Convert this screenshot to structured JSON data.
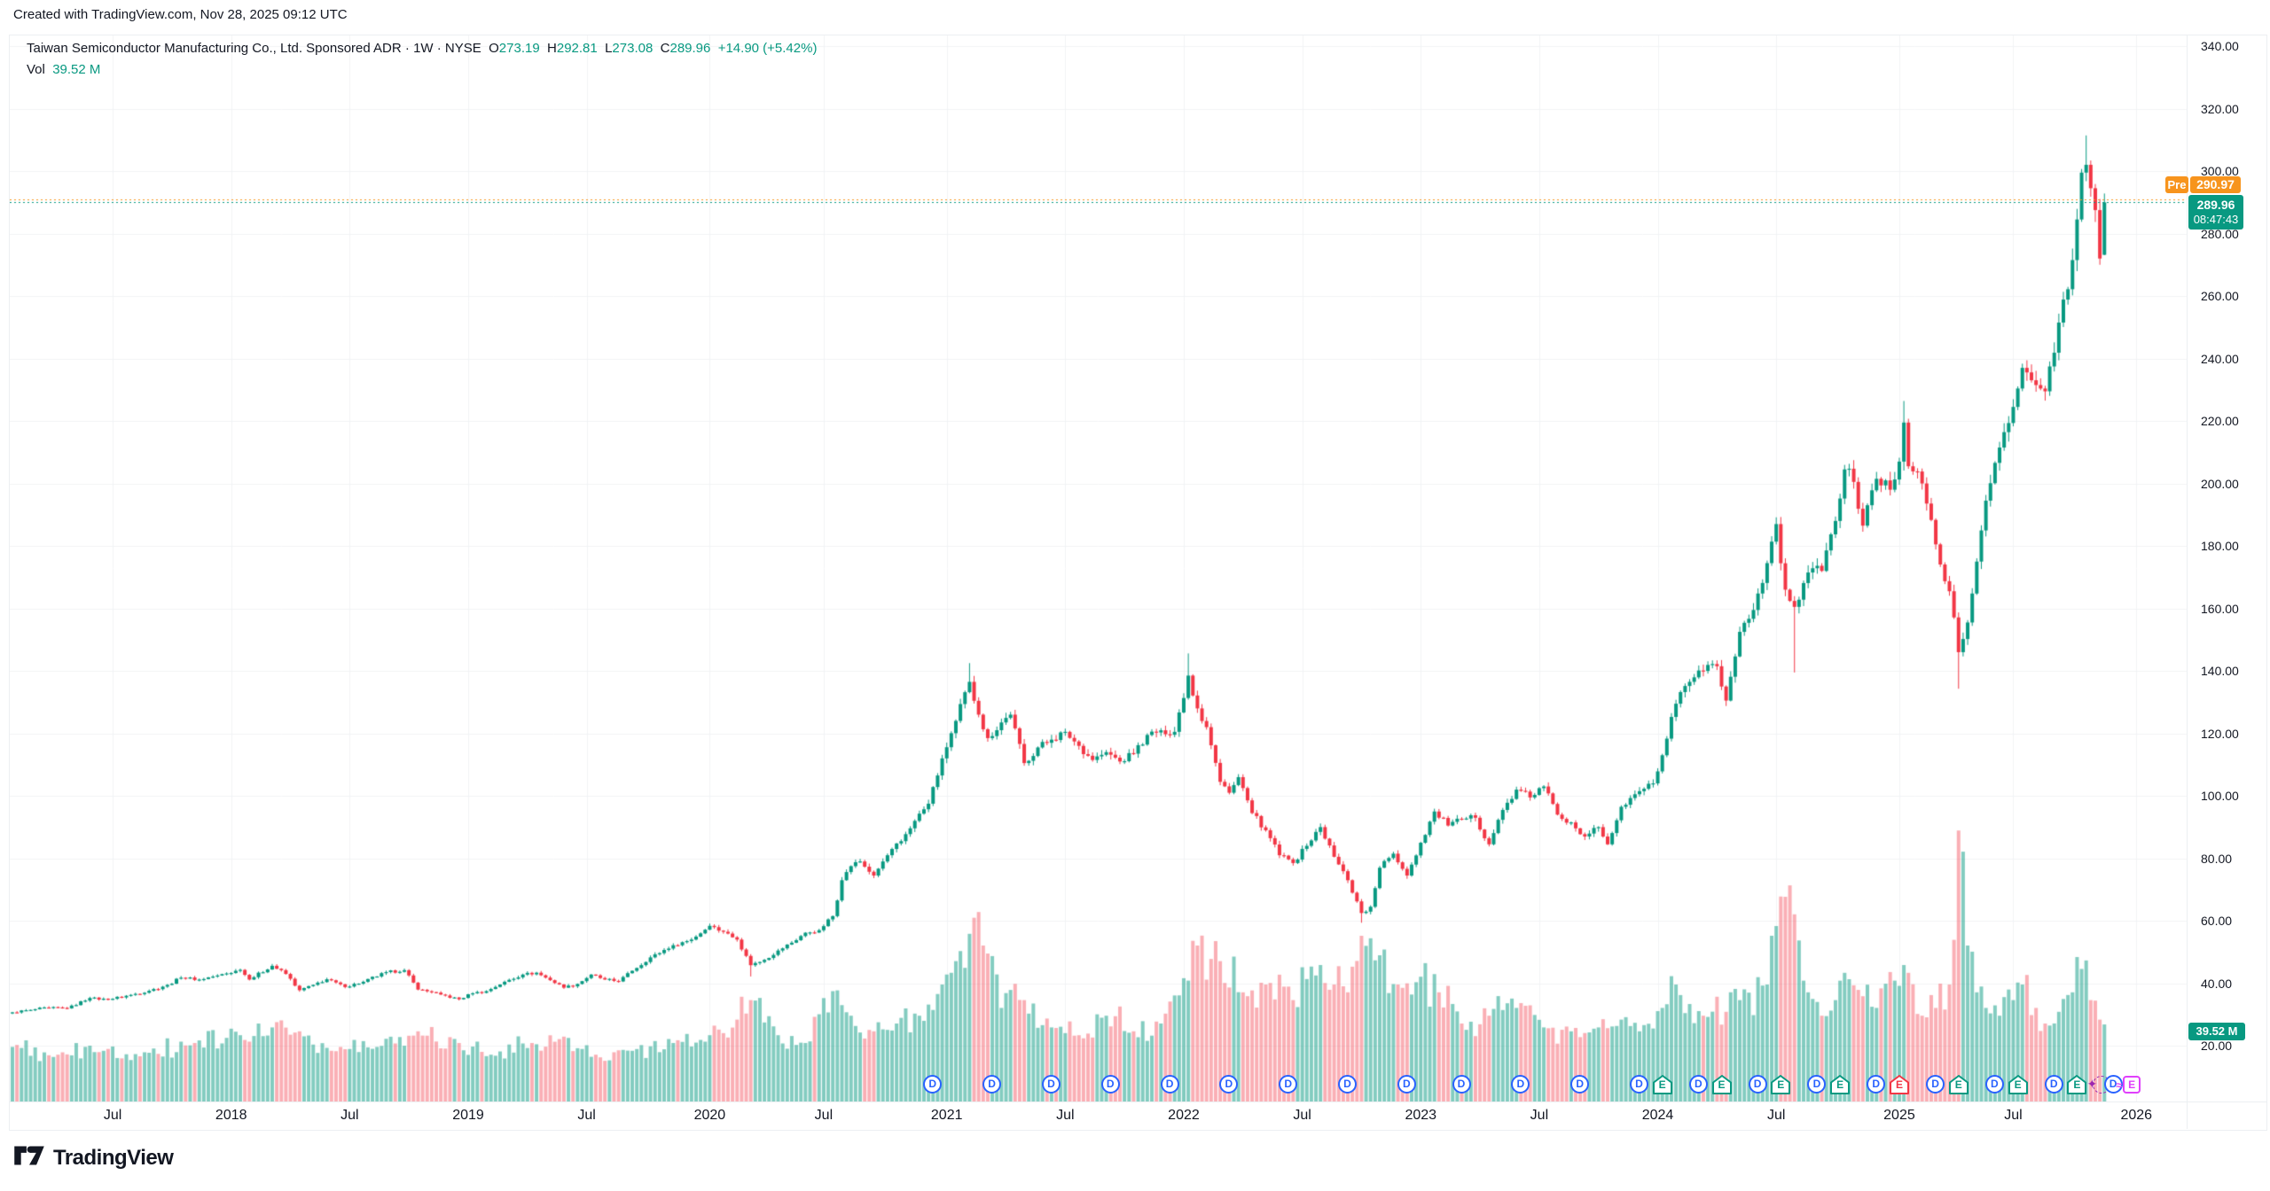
{
  "header": {
    "created_line": "Created with TradingView.com, Nov 28, 2025 09:12 UTC"
  },
  "legend": {
    "title": "Taiwan Semiconductor Manufacturing Co., Ltd. Sponsored ADR",
    "separator": "·",
    "timeframe": "1W",
    "exchange": "NYSE",
    "ohlc": [
      {
        "k": "O",
        "v": "273.19"
      },
      {
        "k": "H",
        "v": "292.81"
      },
      {
        "k": "L",
        "v": "273.08"
      },
      {
        "k": "C",
        "v": "289.96"
      }
    ],
    "change": "+14.90 (+5.42%)",
    "vol_label": "Vol",
    "vol_value": "39.52 M"
  },
  "price_axis": {
    "labels": [
      "340.00",
      "320.00",
      "300.00",
      "280.00",
      "260.00",
      "240.00",
      "220.00",
      "200.00",
      "180.00",
      "160.00",
      "140.00",
      "120.00",
      "100.00",
      "80.00",
      "60.00",
      "40.00",
      "20.00"
    ],
    "pre_badge": {
      "label": "Pre",
      "value": "290.97"
    },
    "last_badge": {
      "value": "289.96",
      "countdown": "08:47:43"
    },
    "volume_badge": "39.52 M"
  },
  "time_axis": {
    "labels": [
      {
        "text": "Jul",
        "week": 22
      },
      {
        "text": "2018",
        "week": 48
      },
      {
        "text": "Jul",
        "week": 74
      },
      {
        "text": "2019",
        "week": 100
      },
      {
        "text": "Jul",
        "week": 126
      },
      {
        "text": "2020",
        "week": 153
      },
      {
        "text": "Jul",
        "week": 178
      },
      {
        "text": "2021",
        "week": 205
      },
      {
        "text": "Jul",
        "week": 231
      },
      {
        "text": "2022",
        "week": 257
      },
      {
        "text": "Jul",
        "week": 283
      },
      {
        "text": "2023",
        "week": 309
      },
      {
        "text": "Jul",
        "week": 335
      },
      {
        "text": "2024",
        "week": 361
      },
      {
        "text": "Jul",
        "week": 387
      },
      {
        "text": "2025",
        "week": 414
      },
      {
        "text": "Jul",
        "week": 439
      },
      {
        "text": "2026",
        "week": 466
      }
    ]
  },
  "events": {
    "dividend_letter": "D",
    "earnings_letter": "E",
    "dividends_weeks": [
      202,
      215,
      228,
      241,
      254,
      267,
      280,
      293,
      306,
      318,
      331,
      344,
      357,
      370,
      383,
      396,
      409,
      422,
      435,
      448
    ],
    "dividend_upcoming_week": 461,
    "earnings": [
      {
        "week": 362,
        "result": "beat"
      },
      {
        "week": 375,
        "result": "beat"
      },
      {
        "week": 388,
        "result": "beat"
      },
      {
        "week": 401,
        "result": "beat"
      },
      {
        "week": 414,
        "result": "miss"
      },
      {
        "week": 427,
        "result": "beat"
      },
      {
        "week": 440,
        "result": "beat"
      },
      {
        "week": 453,
        "result": "beat"
      }
    ],
    "earnings_upcoming_week": 465
  },
  "colors": {
    "up": "#089981",
    "down": "#F23645",
    "volume_up": "rgba(8,153,129,0.5)",
    "volume_down": "rgba(242,54,69,0.4)",
    "pre_line": "#F7941D",
    "last_line": "#089981",
    "dividend": "#2962FF",
    "earnings_beat": "#089981",
    "earnings_miss": "#F23645",
    "earnings_upcoming": "#E040FB",
    "sparkle": "#9C27B0",
    "grid": "#F2F3F5",
    "text": "#131722"
  },
  "branding": {
    "logo_text": "TradingView"
  },
  "chart_data": {
    "type": "candlestick_with_volume",
    "symbol": "Taiwan Semiconductor Manufacturing Co., Ltd. Sponsored ADR (NYSE)",
    "timeframe": "1W",
    "week0_date": "2017-01-30",
    "weeks_total": 460,
    "y_axis": {
      "min_label": 20,
      "max_label": 340,
      "step": 20
    },
    "price_lines": {
      "premarket": 290.97,
      "last_close": 289.96
    },
    "last_candle": {
      "open": 273.19,
      "high": 292.81,
      "low": 273.08,
      "close": 289.96,
      "volume_m": 39.52
    },
    "noise_pct": 0.012,
    "close_anchors": [
      [
        0,
        30.7
      ],
      [
        4,
        31.5
      ],
      [
        8,
        32.2
      ],
      [
        12,
        32.0
      ],
      [
        17,
        35.3
      ],
      [
        21,
        34.8
      ],
      [
        26,
        36.3
      ],
      [
        30,
        37.6
      ],
      [
        34,
        39.5
      ],
      [
        37,
        41.8
      ],
      [
        41,
        41.2
      ],
      [
        45,
        42.5
      ],
      [
        50,
        44.3
      ],
      [
        52,
        41.2
      ],
      [
        57,
        45.6
      ],
      [
        60,
        43.0
      ],
      [
        63,
        37.8
      ],
      [
        66,
        39.5
      ],
      [
        69,
        41.3
      ],
      [
        73,
        38.8
      ],
      [
        77,
        40.5
      ],
      [
        82,
        43.6
      ],
      [
        86,
        44.2
      ],
      [
        89,
        38.0
      ],
      [
        92,
        37.2
      ],
      [
        94,
        36.4
      ],
      [
        98,
        34.9
      ],
      [
        101,
        36.8
      ],
      [
        104,
        37.5
      ],
      [
        108,
        40.5
      ],
      [
        112,
        42.8
      ],
      [
        115,
        43.4
      ],
      [
        118,
        41.0
      ],
      [
        121,
        38.6
      ],
      [
        124,
        39.8
      ],
      [
        127,
        42.8
      ],
      [
        130,
        41.2
      ],
      [
        133,
        40.6
      ],
      [
        136,
        44.0
      ],
      [
        140,
        48.3
      ],
      [
        145,
        52.2
      ],
      [
        149,
        54.0
      ],
      [
        153,
        58.4
      ],
      [
        156,
        56.5
      ],
      [
        159,
        54.0
      ],
      [
        162,
        45.8
      ],
      [
        165,
        47.5
      ],
      [
        168,
        50.5
      ],
      [
        171,
        53.0
      ],
      [
        174,
        56.2
      ],
      [
        177,
        57.0
      ],
      [
        180,
        61.5
      ],
      [
        182,
        73.0
      ],
      [
        184,
        77.5
      ],
      [
        186,
        79.0
      ],
      [
        189,
        74.5
      ],
      [
        192,
        81.0
      ],
      [
        195,
        85.5
      ],
      [
        198,
        92.0
      ],
      [
        201,
        97.5
      ],
      [
        204,
        112.0
      ],
      [
        207,
        124.0
      ],
      [
        210,
        136.5
      ],
      [
        212,
        126.0
      ],
      [
        214,
        118.5
      ],
      [
        217,
        123.5
      ],
      [
        219,
        126.0
      ],
      [
        222,
        110.5
      ],
      [
        225,
        115.5
      ],
      [
        228,
        118.0
      ],
      [
        231,
        120.5
      ],
      [
        234,
        116.0
      ],
      [
        237,
        111.5
      ],
      [
        240,
        114.0
      ],
      [
        243,
        111.0
      ],
      [
        246,
        113.5
      ],
      [
        249,
        119.5
      ],
      [
        252,
        121.0
      ],
      [
        255,
        120.5
      ],
      [
        258,
        138.5
      ],
      [
        260,
        128.0
      ],
      [
        262,
        122.0
      ],
      [
        265,
        104.5
      ],
      [
        267,
        101.0
      ],
      [
        269,
        106.0
      ],
      [
        272,
        94.5
      ],
      [
        275,
        89.0
      ],
      [
        278,
        81.0
      ],
      [
        281,
        78.5
      ],
      [
        284,
        84.0
      ],
      [
        287,
        90.0
      ],
      [
        290,
        80.5
      ],
      [
        293,
        73.0
      ],
      [
        296,
        62.5
      ],
      [
        298,
        64.5
      ],
      [
        300,
        77.0
      ],
      [
        303,
        81.5
      ],
      [
        306,
        74.5
      ],
      [
        309,
        85.0
      ],
      [
        312,
        95.0
      ],
      [
        315,
        90.5
      ],
      [
        318,
        92.5
      ],
      [
        321,
        93.0
      ],
      [
        324,
        84.5
      ],
      [
        327,
        95.5
      ],
      [
        330,
        102.0
      ],
      [
        333,
        99.5
      ],
      [
        336,
        103.0
      ],
      [
        339,
        94.0
      ],
      [
        342,
        91.5
      ],
      [
        345,
        87.0
      ],
      [
        348,
        90.0
      ],
      [
        350,
        84.5
      ],
      [
        353,
        96.5
      ],
      [
        357,
        101.5
      ],
      [
        360,
        104.0
      ],
      [
        362,
        113.0
      ],
      [
        365,
        129.5
      ],
      [
        368,
        136.5
      ],
      [
        371,
        140.0
      ],
      [
        374,
        141.5
      ],
      [
        376,
        130.5
      ],
      [
        379,
        152.5
      ],
      [
        382,
        159.5
      ],
      [
        385,
        174.5
      ],
      [
        387,
        187.0
      ],
      [
        389,
        166.0
      ],
      [
        391,
        160.5
      ],
      [
        394,
        171.5
      ],
      [
        397,
        172.0
      ],
      [
        400,
        188.0
      ],
      [
        402,
        204.5
      ],
      [
        404,
        200.5
      ],
      [
        406,
        186.5
      ],
      [
        409,
        201.5
      ],
      [
        412,
        198.0
      ],
      [
        414,
        207.0
      ],
      [
        415,
        219.5
      ],
      [
        416,
        205.5
      ],
      [
        419,
        200.0
      ],
      [
        422,
        180.5
      ],
      [
        425,
        165.5
      ],
      [
        427,
        146.0
      ],
      [
        429,
        155.5
      ],
      [
        431,
        175.0
      ],
      [
        433,
        194.5
      ],
      [
        436,
        211.5
      ],
      [
        439,
        224.5
      ],
      [
        441,
        237.0
      ],
      [
        444,
        231.5
      ],
      [
        446,
        229.5
      ],
      [
        449,
        251.5
      ],
      [
        452,
        271.5
      ],
      [
        453,
        284.5
      ],
      [
        454,
        299.5
      ],
      [
        455,
        302.0
      ],
      [
        456,
        294.5
      ],
      [
        457,
        287.5
      ],
      [
        458,
        272.0
      ],
      [
        459,
        289.96
      ]
    ],
    "special_wicks": {
      "162": {
        "low": 42.2
      },
      "210": {
        "high": 142.5
      },
      "258": {
        "high": 145.6
      },
      "296": {
        "low": 59.4
      },
      "391": {
        "low": 139.5
      },
      "415": {
        "high": 226.4
      },
      "427": {
        "low": 134.3
      },
      "455": {
        "high": 311.4
      }
    },
    "volume_anchors_m": [
      [
        0,
        28
      ],
      [
        10,
        24
      ],
      [
        20,
        26
      ],
      [
        30,
        25
      ],
      [
        40,
        30
      ],
      [
        50,
        34
      ],
      [
        57,
        38
      ],
      [
        63,
        36
      ],
      [
        70,
        26
      ],
      [
        80,
        28
      ],
      [
        89,
        36
      ],
      [
        98,
        30
      ],
      [
        105,
        24
      ],
      [
        114,
        30
      ],
      [
        120,
        32
      ],
      [
        128,
        24
      ],
      [
        136,
        26
      ],
      [
        145,
        30
      ],
      [
        153,
        34
      ],
      [
        159,
        42
      ],
      [
        162,
        52
      ],
      [
        168,
        34
      ],
      [
        174,
        30
      ],
      [
        181,
        57
      ],
      [
        184,
        44
      ],
      [
        189,
        36
      ],
      [
        194,
        40
      ],
      [
        199,
        44
      ],
      [
        204,
        60
      ],
      [
        207,
        72
      ],
      [
        210,
        86
      ],
      [
        213,
        80
      ],
      [
        217,
        48
      ],
      [
        222,
        52
      ],
      [
        228,
        38
      ],
      [
        234,
        34
      ],
      [
        240,
        44
      ],
      [
        246,
        36
      ],
      [
        252,
        40
      ],
      [
        258,
        62
      ],
      [
        260,
        80
      ],
      [
        265,
        72
      ],
      [
        270,
        56
      ],
      [
        275,
        60
      ],
      [
        281,
        52
      ],
      [
        287,
        70
      ],
      [
        290,
        60
      ],
      [
        293,
        56
      ],
      [
        296,
        85
      ],
      [
        300,
        75
      ],
      [
        304,
        60
      ],
      [
        309,
        64
      ],
      [
        313,
        56
      ],
      [
        318,
        40
      ],
      [
        324,
        44
      ],
      [
        330,
        48
      ],
      [
        336,
        38
      ],
      [
        342,
        36
      ],
      [
        348,
        38
      ],
      [
        353,
        42
      ],
      [
        357,
        36
      ],
      [
        362,
        48
      ],
      [
        365,
        60
      ],
      [
        368,
        50
      ],
      [
        371,
        44
      ],
      [
        376,
        46
      ],
      [
        379,
        52
      ],
      [
        385,
        60
      ],
      [
        387,
        90
      ],
      [
        389,
        105
      ],
      [
        391,
        96
      ],
      [
        394,
        56
      ],
      [
        397,
        44
      ],
      [
        400,
        52
      ],
      [
        402,
        66
      ],
      [
        406,
        54
      ],
      [
        409,
        48
      ],
      [
        413,
        62
      ],
      [
        415,
        70
      ],
      [
        416,
        66
      ],
      [
        419,
        44
      ],
      [
        422,
        48
      ],
      [
        425,
        60
      ],
      [
        427,
        139
      ],
      [
        429,
        80
      ],
      [
        431,
        56
      ],
      [
        433,
        48
      ],
      [
        436,
        44
      ],
      [
        439,
        52
      ],
      [
        441,
        60
      ],
      [
        444,
        48
      ],
      [
        446,
        40
      ],
      [
        449,
        46
      ],
      [
        452,
        56
      ],
      [
        454,
        68
      ],
      [
        456,
        52
      ],
      [
        458,
        42
      ],
      [
        459,
        39.52
      ]
    ]
  }
}
